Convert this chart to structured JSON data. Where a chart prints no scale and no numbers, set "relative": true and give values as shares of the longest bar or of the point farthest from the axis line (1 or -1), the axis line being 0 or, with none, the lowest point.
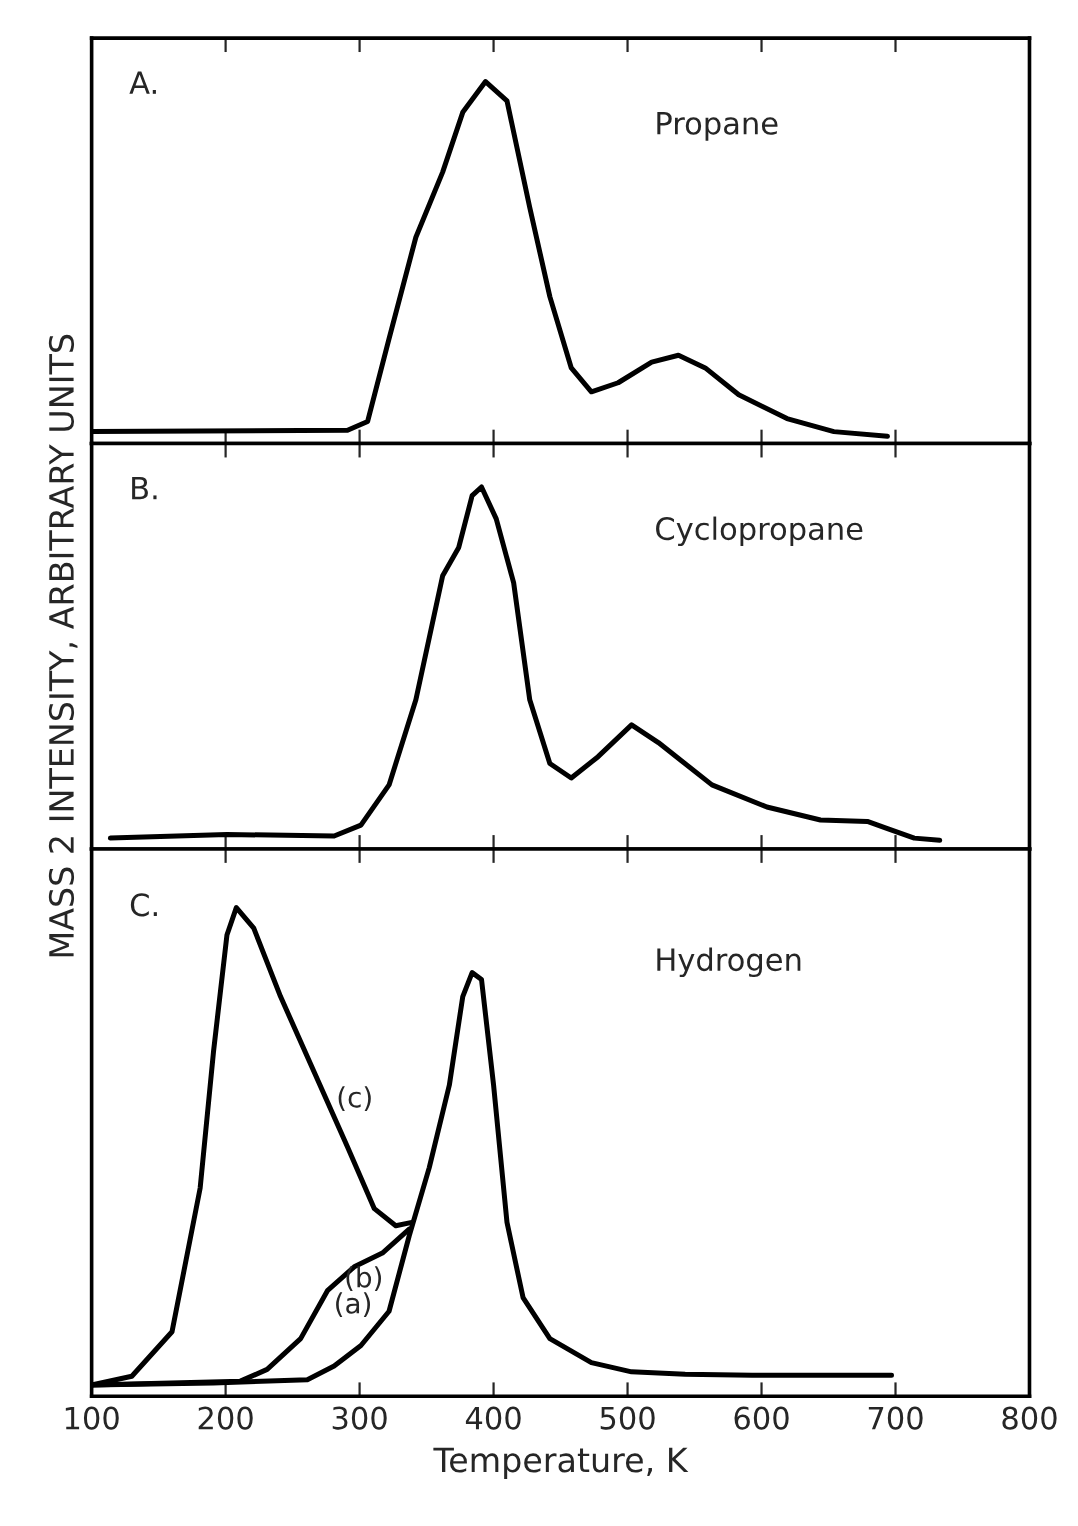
{
  "chart_data": [
    {
      "type": "line",
      "relative": true,
      "xlim": [
        100,
        800
      ],
      "xticks": [
        100,
        200,
        300,
        400,
        500,
        600,
        700,
        800
      ],
      "tick_labels": false,
      "grid": false,
      "legend": false,
      "annotations": [
        "A.",
        "Propane"
      ],
      "series": [
        {
          "color": "#000000",
          "x": [
            100,
            291,
            306,
            322,
            342,
            362,
            377,
            394,
            410,
            427,
            442,
            458,
            473,
            493,
            518,
            538,
            558,
            583,
            619,
            654,
            694
          ],
          "values": [
            0.033,
            0.037,
            0.061,
            0.29,
            0.57,
            0.75,
            0.915,
            1,
            0.947,
            0.652,
            0.406,
            0.209,
            0.143,
            0.168,
            0.225,
            0.244,
            0.209,
            0.135,
            0.069,
            0.033,
            0.02
          ]
        }
      ]
    },
    {
      "type": "line",
      "relative": true,
      "xlim": [
        100,
        800
      ],
      "xticks": [
        100,
        200,
        300,
        400,
        500,
        600,
        700,
        800
      ],
      "tick_labels": false,
      "grid": false,
      "legend": false,
      "ylabel": "MASS 2 INTENSITY, ARBITRARY UNITS",
      "annotations": [
        "B.",
        "Cyclopropane"
      ],
      "series": [
        {
          "color": "#000000",
          "x": [
            114,
            201,
            281,
            301,
            322,
            342,
            362,
            374,
            384,
            391,
            402,
            415,
            427,
            442,
            458,
            478,
            503,
            523,
            563,
            604,
            644,
            679,
            694,
            714,
            733
          ],
          "values": [
            0.03,
            0.04,
            0.036,
            0.066,
            0.177,
            0.412,
            0.755,
            0.833,
            0.976,
            1,
            0.912,
            0.735,
            0.412,
            0.236,
            0.196,
            0.255,
            0.343,
            0.294,
            0.177,
            0.116,
            0.08,
            0.076,
            0.056,
            0.03,
            0.024
          ]
        }
      ]
    },
    {
      "type": "line",
      "relative": true,
      "xlim": [
        100,
        800
      ],
      "xticks": [
        100,
        200,
        300,
        400,
        500,
        600,
        700,
        800
      ],
      "tick_labels": "x",
      "grid": false,
      "legend": false,
      "xlabel": "Temperature, K",
      "annotations": [
        "C.",
        "Hydrogen",
        {
          "text": "(c)",
          "x": 266,
          "y": 0.664
        },
        {
          "text": "(b)",
          "x": 276,
          "y": 0.216
        },
        {
          "text": "(a)",
          "x": 322,
          "y": 0.174
        }
      ],
      "series": [
        {
          "color": "#000000",
          "x": [
            100,
            191,
            261,
            281,
            301,
            322,
            337,
            352,
            367,
            377,
            384,
            391,
            400,
            410,
            422,
            442,
            473,
            503,
            543,
            593,
            697
          ],
          "values": [
            0.023,
            0.027,
            0.034,
            0.062,
            0.104,
            0.174,
            0.328,
            0.468,
            0.637,
            0.818,
            0.867,
            0.853,
            0.637,
            0.356,
            0.202,
            0.118,
            0.069,
            0.05,
            0.045,
            0.043,
            0.043
          ]
        },
        {
          "color": "#000000",
          "x": [
            100,
            211,
            231,
            256,
            276,
            296,
            317,
            337
          ],
          "values": [
            0.023,
            0.031,
            0.055,
            0.118,
            0.216,
            0.265,
            0.293,
            0.342
          ]
        },
        {
          "color": "#000000",
          "x": [
            100,
            130,
            160,
            181,
            191,
            201,
            208,
            221,
            241,
            266,
            291,
            311,
            327,
            339
          ],
          "values": [
            0.023,
            0.041,
            0.132,
            0.426,
            0.706,
            0.944,
            1,
            0.958,
            0.818,
            0.664,
            0.51,
            0.384,
            0.349,
            0.356
          ]
        }
      ]
    }
  ]
}
